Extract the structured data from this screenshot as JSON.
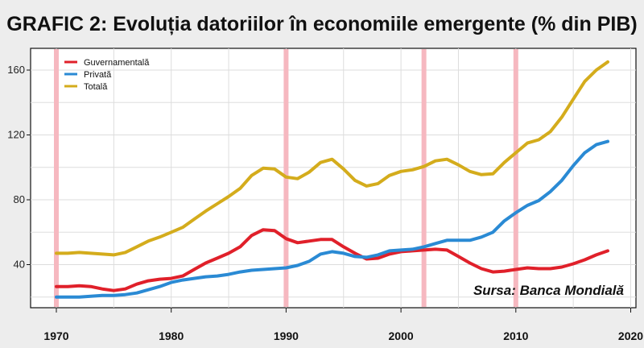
{
  "chart_data": {
    "type": "line",
    "title": "GRAFIC 2: Evoluția datoriilor în economiile emergente (% din PIB)",
    "source_note": "Sursa: Banca Mondială",
    "xlim": [
      1970,
      2020
    ],
    "ylim": [
      18,
      172
    ],
    "x_ticks": [
      1970,
      1980,
      1990,
      2000,
      2010,
      2020
    ],
    "y_ticks": [
      40,
      80,
      120,
      160
    ],
    "grid": true,
    "legend_position": "top-left",
    "highlight_years": [
      1970,
      1990,
      2002,
      2010
    ],
    "highlight_color": "#f6b8c0",
    "x": [
      1970,
      1971,
      1972,
      1973,
      1974,
      1975,
      1976,
      1977,
      1978,
      1979,
      1980,
      1981,
      1982,
      1983,
      1984,
      1985,
      1986,
      1987,
      1988,
      1989,
      1990,
      1991,
      1992,
      1993,
      1994,
      1995,
      1996,
      1997,
      1998,
      1999,
      2000,
      2001,
      2002,
      2003,
      2004,
      2005,
      2006,
      2007,
      2008,
      2009,
      2010,
      2011,
      2012,
      2013,
      2014,
      2015,
      2016,
      2017,
      2018
    ],
    "series": [
      {
        "name": "Guvernamentală",
        "color": "#e0202a",
        "values": [
          26.5,
          26.5,
          27,
          26.5,
          25,
          24,
          25,
          28,
          30,
          31,
          31.5,
          33,
          37,
          41,
          44,
          47,
          51,
          58,
          61.5,
          61,
          56,
          53.5,
          54.5,
          55.5,
          55.5,
          51,
          47,
          43.5,
          44,
          46.5,
          48,
          48.5,
          49,
          49.5,
          49,
          45,
          41,
          37.5,
          35.5,
          36,
          37,
          38,
          37.5,
          37.5,
          38.5,
          40.5,
          43,
          46,
          48.5
        ]
      },
      {
        "name": "Privată",
        "color": "#2a8ad4",
        "values": [
          20,
          20,
          20,
          20.5,
          21,
          21,
          21.5,
          22.5,
          24.5,
          26.5,
          29,
          30.5,
          31.5,
          32.5,
          33,
          34,
          35.5,
          36.5,
          37,
          37.5,
          38,
          39.5,
          42,
          46.5,
          48,
          47,
          45,
          44.5,
          46,
          48.5,
          49,
          49.5,
          51,
          53,
          55,
          55,
          55,
          57,
          60,
          67,
          72,
          76.5,
          79.5,
          85,
          92,
          101,
          109,
          114,
          116
        ]
      },
      {
        "name": "Totală",
        "color": "#d4ac1c",
        "values": [
          47,
          47,
          47.5,
          47,
          46.5,
          46,
          47.5,
          51,
          54.5,
          57,
          60,
          63,
          68,
          73,
          77.5,
          82,
          87,
          95,
          99.5,
          99,
          94,
          93,
          97,
          103,
          105,
          99,
          92,
          88.5,
          90,
          95,
          97.5,
          98.5,
          100.5,
          104,
          105,
          101.5,
          97.5,
          95.5,
          96,
          103,
          109,
          115,
          117,
          122,
          131,
          142,
          153,
          160,
          165
        ]
      }
    ]
  }
}
